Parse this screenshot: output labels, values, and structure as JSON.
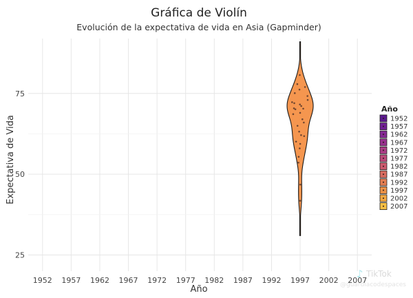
{
  "chart_data": {
    "type": "violin",
    "title": "Gráfica de Violín",
    "subtitle": "Evolución de la expectativa de vida en Asia (Gapminder)",
    "xlabel": "Año",
    "ylabel": "Expectativa de Vida",
    "x_ticks": [
      "1952",
      "1957",
      "1962",
      "1967",
      "1972",
      "1977",
      "1982",
      "1987",
      "1992",
      "1997",
      "2002",
      "2007"
    ],
    "y_ticks": [
      25,
      50,
      75
    ],
    "ylim": [
      20,
      92
    ],
    "grid": true,
    "legend": {
      "title": "Año",
      "position": "right",
      "entries": [
        {
          "label": "1952",
          "color": "#5b1a8e"
        },
        {
          "label": "1957",
          "color": "#6f1f93"
        },
        {
          "label": "1962",
          "color": "#842793"
        },
        {
          "label": "1967",
          "color": "#98318e"
        },
        {
          "label": "1972",
          "color": "#ab3d86"
        },
        {
          "label": "1977",
          "color": "#bc4a7b"
        },
        {
          "label": "1982",
          "color": "#cb5a6e"
        },
        {
          "label": "1987",
          "color": "#d86b5f"
        },
        {
          "label": "1992",
          "color": "#e37e52"
        },
        {
          "label": "1997",
          "color": "#ec9248"
        },
        {
          "label": "2002",
          "color": "#f2a843"
        },
        {
          "label": "2007",
          "color": "#f5bf45"
        }
      ]
    },
    "series": [
      {
        "year": "1997",
        "color": "#f5964f",
        "min": 31,
        "max": 91,
        "points": [
          41.8,
          46.8,
          53.6,
          55.4,
          58.0,
          59.4,
          60.1,
          61.8,
          62.1,
          63.2,
          65.0,
          66.0,
          67.0,
          68.6,
          69.0,
          70.1,
          70.3,
          70.4,
          71.1,
          71.6,
          72.0,
          72.3,
          73.0,
          74.2,
          75.1,
          76.2,
          77.0,
          77.9,
          80.7
        ]
      }
    ]
  },
  "watermark": {
    "app": "TikTok",
    "handle": "@guardiacodespaces"
  }
}
